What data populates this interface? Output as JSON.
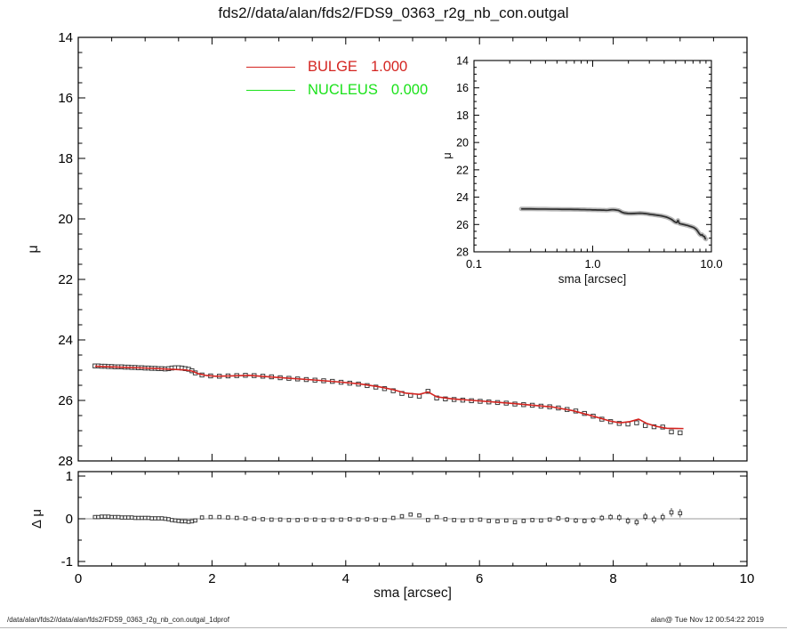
{
  "title": "fds2//data/alan/fds2/FDS9_0363_r2g_nb_con.outgal",
  "footer": {
    "left": "/data/alan/fds2//data/alan/fds2/FDS9_0363_r2g_nb_con.outgal_1dprof",
    "right": "alan@  Tue Nov 12 00:54:22 2019"
  },
  "colors": {
    "bulge": "#d42420",
    "nucleus": "#1ae21a",
    "data_marker": "#3a3a3a",
    "axis": "#000000",
    "zero_line": "#999999",
    "inset_band": "#b6b6b6",
    "inset_line": "#2d2d2d"
  },
  "legend": [
    {
      "label": "BULGE",
      "value": "1.000",
      "color": "#d42420"
    },
    {
      "label": "NUCLEUS",
      "value": "0.000",
      "color": "#1ae21a"
    }
  ],
  "chart_data": [
    {
      "id": "main_profile",
      "type": "scatter",
      "xlabel": "sma [arcsec]",
      "ylabel": "μ",
      "xlim": [
        0,
        10
      ],
      "ylim": [
        14,
        28
      ],
      "y_axis_inverted": true,
      "x_ticks": [
        0,
        2,
        4,
        6,
        8,
        10
      ],
      "x_minor_step": 0.5,
      "y_ticks": [
        14,
        16,
        18,
        20,
        22,
        24,
        26,
        28
      ],
      "y_minor_step": 0.5,
      "grid": false,
      "series": [
        {
          "name": "data",
          "style": "open-squares",
          "points": [
            [
              0.25,
              24.86
            ],
            [
              0.3,
              24.86
            ],
            [
              0.35,
              24.87
            ],
            [
              0.4,
              24.87
            ],
            [
              0.45,
              24.88
            ],
            [
              0.5,
              24.88
            ],
            [
              0.55,
              24.89
            ],
            [
              0.6,
              24.89
            ],
            [
              0.65,
              24.89
            ],
            [
              0.7,
              24.9
            ],
            [
              0.75,
              24.9
            ],
            [
              0.8,
              24.91
            ],
            [
              0.85,
              24.91
            ],
            [
              0.9,
              24.92
            ],
            [
              0.95,
              24.92
            ],
            [
              1.0,
              24.93
            ],
            [
              1.05,
              24.93
            ],
            [
              1.1,
              24.94
            ],
            [
              1.15,
              24.94
            ],
            [
              1.2,
              24.95
            ],
            [
              1.25,
              24.95
            ],
            [
              1.3,
              24.96
            ],
            [
              1.35,
              24.95
            ],
            [
              1.4,
              24.93
            ],
            [
              1.45,
              24.92
            ],
            [
              1.5,
              24.92
            ],
            [
              1.55,
              24.93
            ],
            [
              1.6,
              24.95
            ],
            [
              1.65,
              24.97
            ],
            [
              1.7,
              25.02
            ],
            [
              1.75,
              25.09
            ],
            [
              1.85,
              25.16
            ],
            [
              1.98,
              25.19
            ],
            [
              2.11,
              25.2
            ],
            [
              2.24,
              25.19
            ],
            [
              2.37,
              25.18
            ],
            [
              2.5,
              25.17
            ],
            [
              2.63,
              25.18
            ],
            [
              2.76,
              25.2
            ],
            [
              2.89,
              25.22
            ],
            [
              3.02,
              25.25
            ],
            [
              3.15,
              25.27
            ],
            [
              3.28,
              25.29
            ],
            [
              3.41,
              25.31
            ],
            [
              3.54,
              25.33
            ],
            [
              3.67,
              25.35
            ],
            [
              3.8,
              25.37
            ],
            [
              3.93,
              25.4
            ],
            [
              4.06,
              25.43
            ],
            [
              4.19,
              25.46
            ],
            [
              4.32,
              25.51
            ],
            [
              4.45,
              25.56
            ],
            [
              4.58,
              25.61
            ],
            [
              4.71,
              25.68
            ],
            [
              4.84,
              25.77
            ],
            [
              4.97,
              25.83
            ],
            [
              5.1,
              25.86
            ],
            [
              5.23,
              25.7
            ],
            [
              5.36,
              25.92
            ],
            [
              5.49,
              25.95
            ],
            [
              5.62,
              25.97
            ],
            [
              5.75,
              25.99
            ],
            [
              5.88,
              26.01
            ],
            [
              6.01,
              26.03
            ],
            [
              6.14,
              26.05
            ],
            [
              6.27,
              26.07
            ],
            [
              6.4,
              26.09
            ],
            [
              6.53,
              26.12
            ],
            [
              6.66,
              26.14
            ],
            [
              6.79,
              26.16
            ],
            [
              6.92,
              26.19
            ],
            [
              7.05,
              26.21
            ],
            [
              7.18,
              26.25
            ],
            [
              7.31,
              26.3
            ],
            [
              7.44,
              26.35
            ],
            [
              7.57,
              26.43
            ],
            [
              7.7,
              26.52
            ],
            [
              7.83,
              26.62
            ],
            [
              7.96,
              26.7
            ],
            [
              8.09,
              26.76
            ],
            [
              8.22,
              26.78
            ],
            [
              8.35,
              26.74
            ],
            [
              8.48,
              26.83
            ],
            [
              8.61,
              26.87
            ],
            [
              8.74,
              26.88
            ],
            [
              8.87,
              27.04
            ],
            [
              9.0,
              27.07
            ]
          ]
        },
        {
          "name": "BULGE model",
          "style": "line",
          "color": "#d42420",
          "points": [
            [
              0.25,
              24.87
            ],
            [
              0.6,
              24.9
            ],
            [
              1.0,
              24.93
            ],
            [
              1.3,
              24.96
            ],
            [
              1.6,
              24.99
            ],
            [
              1.7,
              25.03
            ],
            [
              1.8,
              25.12
            ],
            [
              1.9,
              25.17
            ],
            [
              2.05,
              25.2
            ],
            [
              2.3,
              25.19
            ],
            [
              2.55,
              25.17
            ],
            [
              2.8,
              25.21
            ],
            [
              3.1,
              25.26
            ],
            [
              3.5,
              25.32
            ],
            [
              3.9,
              25.39
            ],
            [
              4.2,
              25.45
            ],
            [
              4.5,
              25.55
            ],
            [
              4.7,
              25.64
            ],
            [
              4.9,
              25.76
            ],
            [
              5.1,
              25.8
            ],
            [
              5.23,
              25.72
            ],
            [
              5.36,
              25.88
            ],
            [
              5.6,
              25.95
            ],
            [
              5.9,
              26.0
            ],
            [
              6.2,
              26.05
            ],
            [
              6.5,
              26.1
            ],
            [
              6.8,
              26.16
            ],
            [
              7.1,
              26.22
            ],
            [
              7.4,
              26.34
            ],
            [
              7.7,
              26.52
            ],
            [
              7.95,
              26.68
            ],
            [
              8.1,
              26.74
            ],
            [
              8.25,
              26.7
            ],
            [
              8.38,
              26.62
            ],
            [
              8.5,
              26.76
            ],
            [
              8.65,
              26.86
            ],
            [
              8.8,
              26.92
            ],
            [
              9.05,
              26.93
            ]
          ]
        }
      ]
    },
    {
      "id": "inset_log_profile",
      "type": "line",
      "xlabel": "sma [arcsec]",
      "ylabel": "μ",
      "xscale": "log",
      "xlim": [
        0.1,
        10
      ],
      "ylim": [
        14,
        28
      ],
      "y_axis_inverted": true,
      "x_tick_labels": [
        "0.1",
        "1.0",
        "10.0"
      ],
      "x_tick_values": [
        0.1,
        1,
        10
      ],
      "y_ticks": [
        14,
        16,
        18,
        20,
        22,
        24,
        26,
        28
      ],
      "y_minor_step": 0.5,
      "series_ref": "main_profile.data",
      "band": true
    },
    {
      "id": "residual_panel",
      "type": "scatter",
      "xlabel": "sma [arcsec]",
      "ylabel": "Δ μ",
      "xlim": [
        0,
        10
      ],
      "ylim": [
        -1,
        1
      ],
      "y_ticks": [
        1,
        0,
        -1
      ],
      "y_minor_step": 0.5,
      "zero_line": true,
      "points": [
        [
          0.25,
          0.04,
          0.01
        ],
        [
          0.3,
          0.04,
          0.01
        ],
        [
          0.35,
          0.05,
          0.01
        ],
        [
          0.4,
          0.05,
          0.01
        ],
        [
          0.45,
          0.05,
          0.01
        ],
        [
          0.5,
          0.04,
          0.01
        ],
        [
          0.55,
          0.04,
          0.01
        ],
        [
          0.6,
          0.04,
          0.01
        ],
        [
          0.65,
          0.03,
          0.01
        ],
        [
          0.7,
          0.03,
          0.01
        ],
        [
          0.75,
          0.03,
          0.01
        ],
        [
          0.8,
          0.03,
          0.01
        ],
        [
          0.85,
          0.02,
          0.01
        ],
        [
          0.9,
          0.02,
          0.01
        ],
        [
          0.95,
          0.02,
          0.01
        ],
        [
          1.0,
          0.02,
          0.01
        ],
        [
          1.05,
          0.02,
          0.01
        ],
        [
          1.1,
          0.01,
          0.01
        ],
        [
          1.15,
          0.01,
          0.01
        ],
        [
          1.2,
          0.01,
          0.01
        ],
        [
          1.25,
          0.01,
          0.01
        ],
        [
          1.3,
          0.0,
          0.01
        ],
        [
          1.35,
          -0.01,
          0.01
        ],
        [
          1.4,
          -0.03,
          0.01
        ],
        [
          1.45,
          -0.04,
          0.01
        ],
        [
          1.5,
          -0.05,
          0.01
        ],
        [
          1.55,
          -0.06,
          0.01
        ],
        [
          1.6,
          -0.06,
          0.01
        ],
        [
          1.65,
          -0.07,
          0.01
        ],
        [
          1.7,
          -0.06,
          0.01
        ],
        [
          1.75,
          -0.04,
          0.01
        ],
        [
          1.85,
          0.03,
          0.01
        ],
        [
          1.98,
          0.04,
          0.01
        ],
        [
          2.11,
          0.04,
          0.01
        ],
        [
          2.24,
          0.03,
          0.01
        ],
        [
          2.37,
          0.02,
          0.01
        ],
        [
          2.5,
          0.01,
          0.01
        ],
        [
          2.63,
          0.0,
          0.01
        ],
        [
          2.76,
          -0.01,
          0.01
        ],
        [
          2.89,
          -0.02,
          0.01
        ],
        [
          3.02,
          -0.02,
          0.01
        ],
        [
          3.15,
          -0.03,
          0.02
        ],
        [
          3.28,
          -0.03,
          0.02
        ],
        [
          3.41,
          -0.02,
          0.02
        ],
        [
          3.54,
          -0.02,
          0.02
        ],
        [
          3.67,
          -0.03,
          0.02
        ],
        [
          3.8,
          -0.02,
          0.02
        ],
        [
          3.93,
          -0.02,
          0.02
        ],
        [
          4.06,
          -0.01,
          0.02
        ],
        [
          4.19,
          -0.02,
          0.02
        ],
        [
          4.32,
          -0.01,
          0.02
        ],
        [
          4.45,
          -0.02,
          0.02
        ],
        [
          4.58,
          -0.03,
          0.03
        ],
        [
          4.71,
          0.02,
          0.03
        ],
        [
          4.84,
          0.06,
          0.03
        ],
        [
          4.97,
          0.1,
          0.03
        ],
        [
          5.1,
          0.08,
          0.03
        ],
        [
          5.23,
          -0.03,
          0.03
        ],
        [
          5.36,
          0.04,
          0.03
        ],
        [
          5.49,
          -0.01,
          0.03
        ],
        [
          5.62,
          -0.03,
          0.03
        ],
        [
          5.75,
          -0.04,
          0.03
        ],
        [
          5.88,
          -0.03,
          0.04
        ],
        [
          6.01,
          -0.02,
          0.04
        ],
        [
          6.14,
          -0.05,
          0.04
        ],
        [
          6.27,
          -0.06,
          0.04
        ],
        [
          6.4,
          -0.04,
          0.04
        ],
        [
          6.53,
          -0.08,
          0.04
        ],
        [
          6.66,
          -0.05,
          0.05
        ],
        [
          6.79,
          -0.03,
          0.05
        ],
        [
          6.92,
          -0.04,
          0.05
        ],
        [
          7.05,
          -0.02,
          0.05
        ],
        [
          7.18,
          0.01,
          0.06
        ],
        [
          7.31,
          -0.02,
          0.06
        ],
        [
          7.44,
          -0.04,
          0.06
        ],
        [
          7.57,
          -0.05,
          0.06
        ],
        [
          7.7,
          -0.03,
          0.07
        ],
        [
          7.83,
          0.02,
          0.07
        ],
        [
          7.96,
          0.04,
          0.07
        ],
        [
          8.09,
          0.03,
          0.08
        ],
        [
          8.22,
          -0.05,
          0.08
        ],
        [
          8.35,
          -0.08,
          0.08
        ],
        [
          8.48,
          0.05,
          0.09
        ],
        [
          8.61,
          -0.02,
          0.09
        ],
        [
          8.74,
          0.04,
          0.09
        ],
        [
          8.87,
          0.15,
          0.1
        ],
        [
          9.0,
          0.13,
          0.1
        ]
      ]
    }
  ]
}
